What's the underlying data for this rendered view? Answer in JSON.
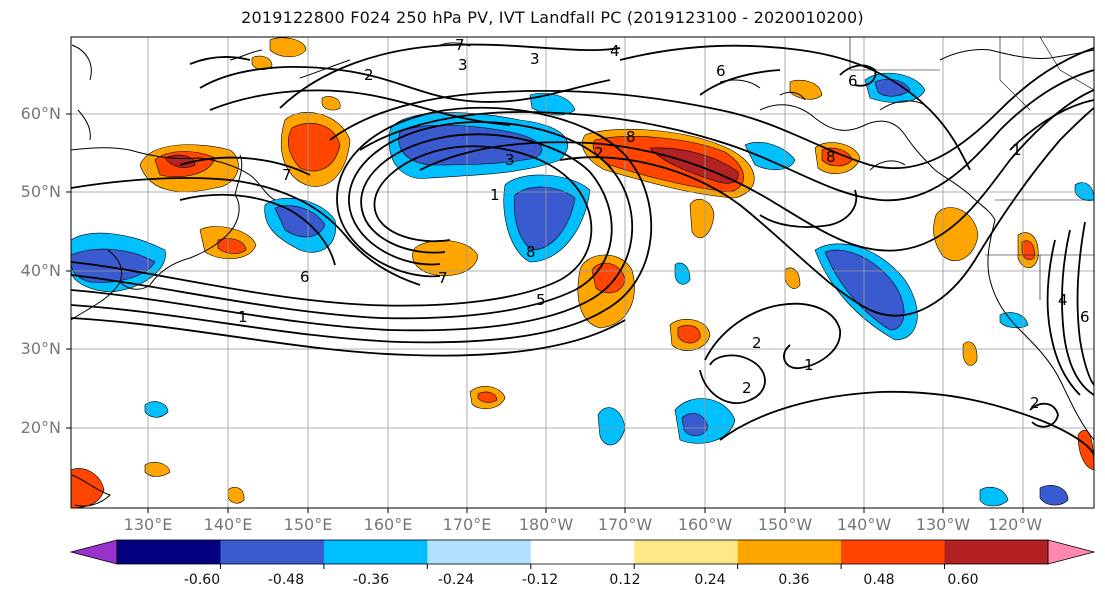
{
  "title": "2019122800 F024 250 hPa PV, IVT Landfall PC (2019123100 - 2020010200)",
  "lat_labels": [
    "60°N",
    "50°N",
    "40°N",
    "30°N",
    "20°N"
  ],
  "lon_labels": [
    "130°E",
    "140°E",
    "150°E",
    "160°E",
    "170°E",
    "180°W",
    "170°W",
    "160°W",
    "150°W",
    "140°W",
    "130°W",
    "120°W"
  ],
  "colorbar": {
    "colors": [
      "#9932cc",
      "#000080",
      "#3a5bd0",
      "#00bfff",
      "#b0e2ff",
      "#ffffff",
      "#ffe88a",
      "#ffa500",
      "#ff4500",
      "#b22222",
      "#ff88b0"
    ],
    "tick_labels": [
      "-0.60",
      "-0.48",
      "-0.36",
      "-0.24",
      "-0.12",
      "0.12",
      "0.24",
      "0.36",
      "0.48",
      "0.60"
    ]
  },
  "contour_labels": [
    "1",
    "2",
    "3",
    "4",
    "5",
    "6",
    "7",
    "8"
  ]
}
